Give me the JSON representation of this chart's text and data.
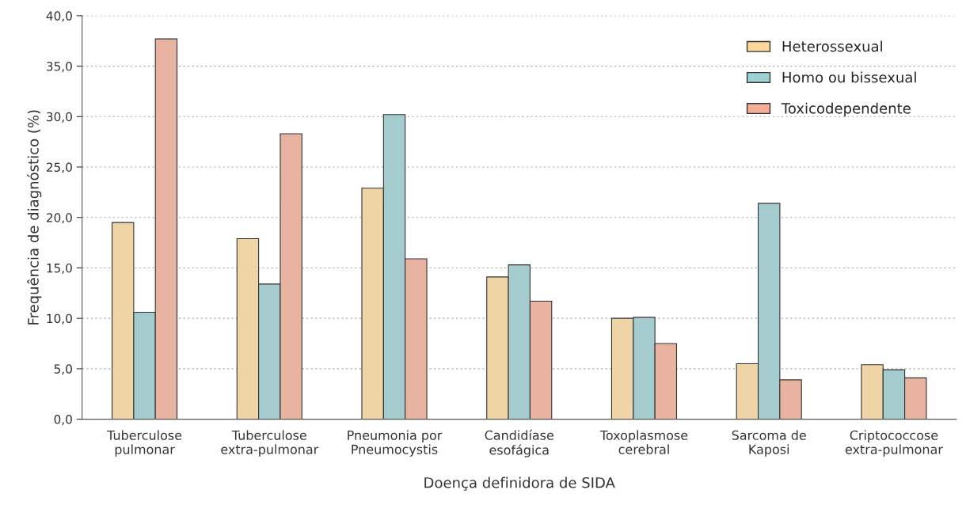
{
  "chart_data": {
    "type": "bar",
    "xlabel": "Doença definidora de SIDA",
    "ylabel": "Frequência de diagnóstico (%)",
    "categories": [
      "Tuberculose\npulmonar",
      "Tuberculose\nextra-pulmonar",
      "Pneumonia por\nPneumocystis",
      "Candidíase\nesofágica",
      "Toxoplasmose\ncerebral",
      "Sarcoma de\nKaposi",
      "Criptococcose\nextra-pulmonar"
    ],
    "series": [
      {
        "name": "Heterossexual",
        "color": "#fbd89a",
        "values": [
          19.5,
          17.9,
          22.9,
          14.1,
          10.0,
          5.5,
          5.4
        ]
      },
      {
        "name": "Homo ou bissexual",
        "color": "#9dd1d4",
        "values": [
          10.6,
          13.4,
          30.2,
          15.3,
          10.1,
          21.4,
          4.9
        ]
      },
      {
        "name": "Toxicodependente",
        "color": "#f4ae95",
        "values": [
          37.7,
          28.3,
          15.9,
          11.7,
          7.5,
          3.9,
          4.1
        ]
      }
    ],
    "ylim": [
      0,
      40
    ],
    "yticks": [
      {
        "value": 0,
        "label": "0,0"
      },
      {
        "value": 5,
        "label": "5,0"
      },
      {
        "value": 10,
        "label": "10,0"
      },
      {
        "value": 15,
        "label": "15,0"
      },
      {
        "value": 20,
        "label": "20,0"
      },
      {
        "value": 25,
        "label": "25,0"
      },
      {
        "value": 30,
        "label": "30,0"
      },
      {
        "value": 35,
        "label": "35,0"
      },
      {
        "value": 40,
        "label": "40,0"
      }
    ],
    "grid": "y",
    "legend": "top right"
  }
}
